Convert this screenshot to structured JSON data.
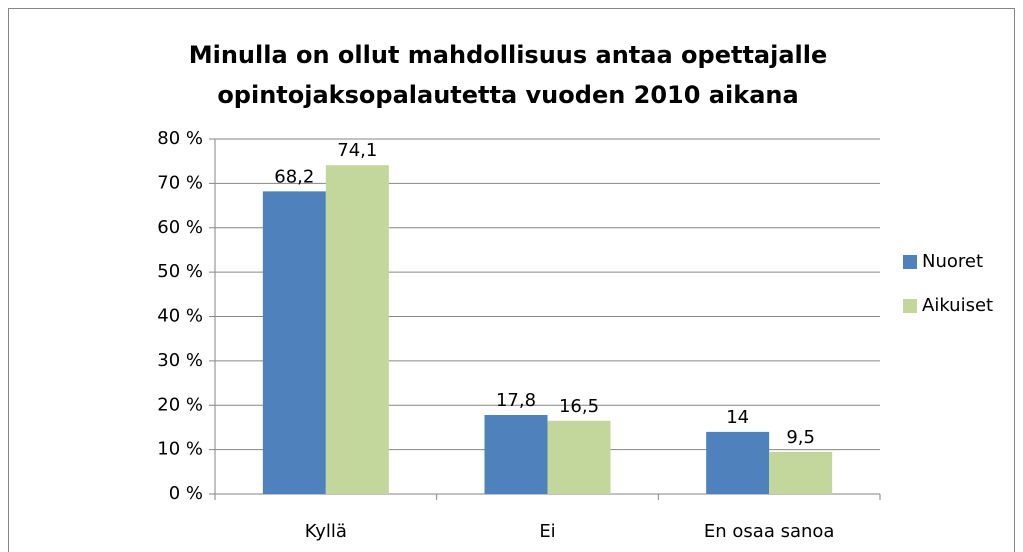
{
  "chart_data": {
    "type": "bar",
    "title": [
      "Minulla on ollut mahdollisuus antaa opettajalle",
      "opintojaksopalautetta vuoden 2010 aikana"
    ],
    "categories": [
      "Kyllä",
      "Ei",
      "En osaa sanoa"
    ],
    "series": [
      {
        "name": "Nuoret",
        "color": "#4f81bd",
        "values": [
          68.2,
          17.8,
          14
        ],
        "value_labels": [
          "68,2",
          "17,8",
          "14"
        ]
      },
      {
        "name": "Aikuiset",
        "color": "#c3d69b",
        "values": [
          74.1,
          16.5,
          9.5
        ],
        "value_labels": [
          "74,1",
          "16,5",
          "9,5"
        ]
      }
    ],
    "ylim": [
      0,
      80
    ],
    "yticks": [
      {
        "value": 0,
        "label": "0 %"
      },
      {
        "value": 10,
        "label": "10 %"
      },
      {
        "value": 20,
        "label": "20 %"
      },
      {
        "value": 30,
        "label": "30 %"
      },
      {
        "value": 40,
        "label": "40 %"
      },
      {
        "value": 50,
        "label": "50 %"
      },
      {
        "value": 60,
        "label": "60 %"
      },
      {
        "value": 70,
        "label": "70 %"
      },
      {
        "value": 80,
        "label": "80 %"
      }
    ],
    "grid": true,
    "legend": "right"
  }
}
